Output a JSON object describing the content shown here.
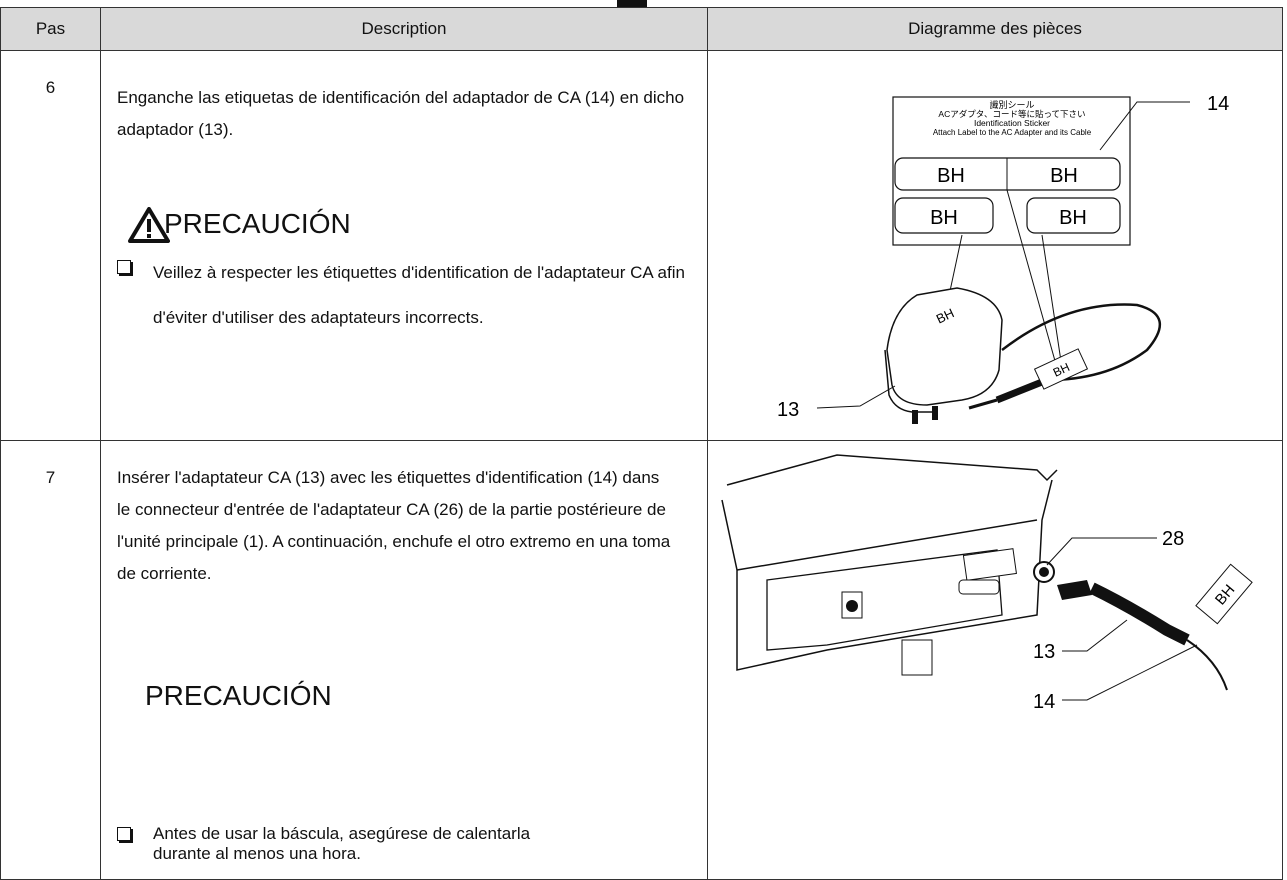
{
  "header": {
    "columns": [
      "Pas",
      "Description",
      "Diagramme des pièces"
    ]
  },
  "rows": [
    {
      "step": "6",
      "description": "Enganche las etiquetas de identificación del adaptador de CA (14) en dicho adaptador (13).",
      "caution": {
        "title": "PRECAUCIÓN",
        "items": [
          "Veillez à respecter les étiquettes d'identification de l'adaptateur CA afin d'éviter d'utiliser des adaptateurs incorrects."
        ]
      },
      "diagram": {
        "sticker_lines": [
          "識別シール",
          "ACアダプタ、コード等に貼って下さい",
          "Identification Sticker",
          "Attach Label to the AC Adapter and its Cable"
        ],
        "sticker_labels": [
          "BH",
          "BH",
          "BH",
          "BH"
        ],
        "adapter_label": "BH",
        "cable_label": "BH",
        "callouts": [
          "14",
          "13"
        ]
      }
    },
    {
      "step": "7",
      "description": "Insérer l'adaptateur CA (13) avec les étiquettes d'identification (14) dans le connecteur d'entrée de l'adaptateur CA (26) de la partie postérieure de l'unité principale (1). A continuación, enchufe el otro extremo en una toma de corriente.",
      "caution": {
        "title": "PRECAUCIÓN",
        "items": [
          "Antes de usar la báscula, asegúrese de calentarla durante al menos una hora."
        ]
      },
      "diagram": {
        "callouts": [
          "28",
          "13",
          "14"
        ],
        "cable_label": "BH"
      }
    }
  ]
}
